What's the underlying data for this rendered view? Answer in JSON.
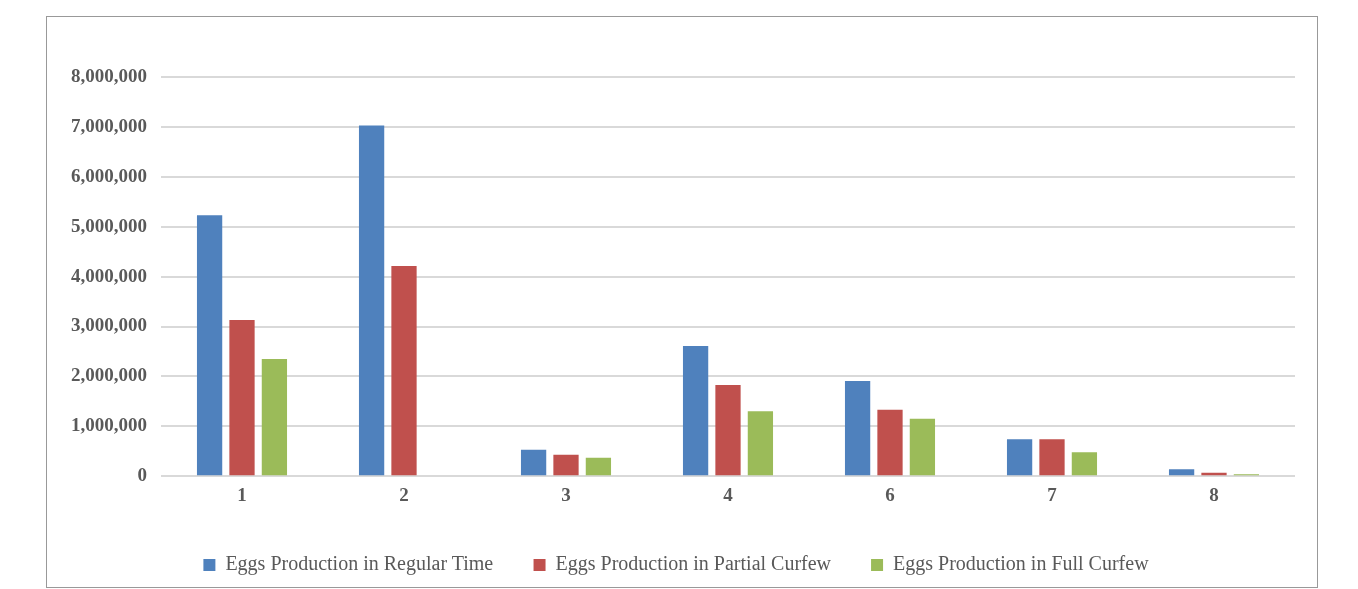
{
  "chart_data": {
    "type": "bar",
    "categories": [
      "1",
      "2",
      "3",
      "4",
      "6",
      "7",
      "8"
    ],
    "series": [
      {
        "name": "Eggs Production in Regular Time",
        "color": "#4f81bd",
        "values": [
          5230000,
          7030000,
          530000,
          2610000,
          1910000,
          740000,
          140000
        ]
      },
      {
        "name": "Eggs Production in Partial Curfew",
        "color": "#c0504d",
        "values": [
          3130000,
          4210000,
          430000,
          1830000,
          1330000,
          740000,
          70000
        ]
      },
      {
        "name": "Eggs Production in Full Curfew",
        "color": "#9bbb59",
        "values": [
          2350000,
          0,
          370000,
          1300000,
          1150000,
          480000,
          40000
        ]
      }
    ],
    "ylim": [
      0,
      8000000
    ],
    "yticks": [
      {
        "value": 0,
        "label": "0"
      },
      {
        "value": 1000000,
        "label": "1,000,000"
      },
      {
        "value": 2000000,
        "label": "2,000,000"
      },
      {
        "value": 3000000,
        "label": "3,000,000"
      },
      {
        "value": 4000000,
        "label": "4,000,000"
      },
      {
        "value": 5000000,
        "label": "5,000,000"
      },
      {
        "value": 6000000,
        "label": "6,000,000"
      },
      {
        "value": 7000000,
        "label": "7,000,000"
      },
      {
        "value": 8000000,
        "label": "8,000,000"
      }
    ],
    "grid": "y",
    "legend": "bottom"
  }
}
